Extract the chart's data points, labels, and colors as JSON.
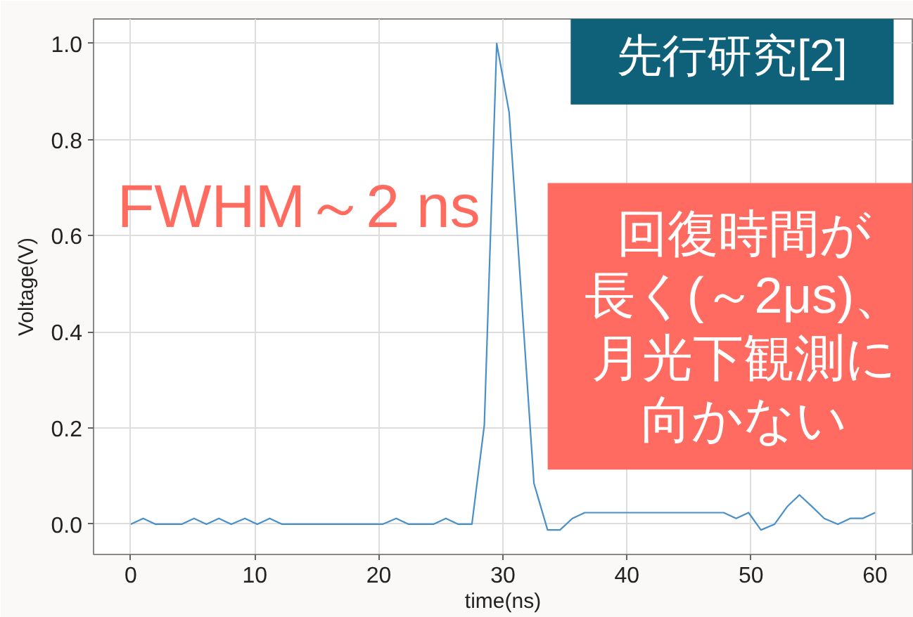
{
  "chart_data": {
    "type": "line",
    "xlabel": "time(ns)",
    "ylabel": "Voltage(V)",
    "annotations": [
      "先行研究[2]",
      "FWHM～2 ns",
      "回復時間が長く(～2μs)、月光下観測に向かない"
    ],
    "x": [
      0,
      1.0,
      2.0,
      3.1,
      4.1,
      5.1,
      6.1,
      7.1,
      8.1,
      9.2,
      10.2,
      11.2,
      12.2,
      13.2,
      14.2,
      15.3,
      16.3,
      17.3,
      18.3,
      19.3,
      20.3,
      21.4,
      22.4,
      23.4,
      24.4,
      25.4,
      26.4,
      27.5,
      28.5,
      29.5,
      30.5,
      31.5,
      32.5,
      33.6,
      34.6,
      35.6,
      36.6,
      37.6,
      38.6,
      39.7,
      40.7,
      41.7,
      42.7,
      43.7,
      44.7,
      45.8,
      46.8,
      47.8,
      48.8,
      49.8,
      50.8,
      51.9,
      52.9,
      53.9,
      54.9,
      55.9,
      57.0,
      58.0,
      59.0,
      60.0
    ],
    "series": [
      {
        "color": "#4a90c8",
        "values": [
          0,
          0.012,
          0,
          0,
          0,
          0.012,
          0,
          0.012,
          0,
          0.012,
          0,
          0.012,
          0,
          0,
          0,
          0,
          0,
          0,
          0,
          0,
          0,
          0.012,
          0,
          0,
          0,
          0.012,
          0,
          0,
          0.206,
          1.0,
          0.857,
          0.47,
          0.085,
          -0.012,
          -0.012,
          0.012,
          0.024,
          0.024,
          0.024,
          0.024,
          0.024,
          0.024,
          0.024,
          0.024,
          0.024,
          0.024,
          0.024,
          0.024,
          0.012,
          0.024,
          -0.012,
          0,
          0.036,
          0.061,
          0.037,
          0.012,
          0,
          0.012,
          0.012,
          0.024
        ]
      }
    ],
    "xlim": [
      -3,
      63
    ],
    "ylim": [
      -0.063,
      1.051
    ],
    "xticks": [
      0,
      10,
      20,
      30,
      40,
      50,
      60
    ],
    "yticks": [
      {
        "value": 0,
        "label": "0.0"
      },
      0.2,
      0.4,
      0.6,
      0.8,
      {
        "value": 1,
        "label": "1.0"
      }
    ],
    "grid": true,
    "line_style": "solid"
  }
}
